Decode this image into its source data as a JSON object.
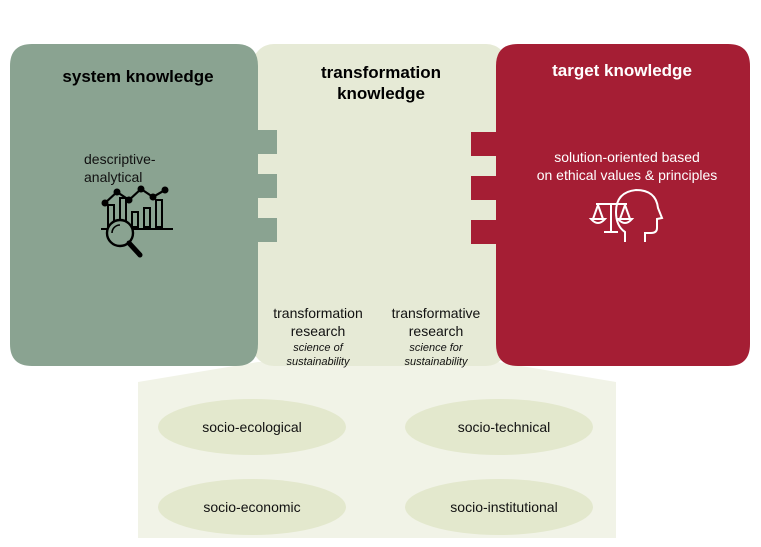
{
  "colors": {
    "system": "#8aa391",
    "transformation": "#e6ead6",
    "target": "#a51e34",
    "lower_panel": "#f1f3e7",
    "oval": "#e3e8cd"
  },
  "system": {
    "title": "system knowledge",
    "description": "descriptive-\nanalytical",
    "icon": "chart-magnifier-icon"
  },
  "transformation": {
    "title": "transformation\nknowledge",
    "research_left": {
      "title": "transformation\nresearch",
      "subtitle": "science of\nsustainability"
    },
    "research_right": {
      "title": "transformative\nresearch",
      "subtitle": "science for\nsustainability"
    }
  },
  "target": {
    "title": "target knowledge",
    "description": "solution-oriented based\non ethical values & principles",
    "icon": "scales-head-icon"
  },
  "domains": [
    "socio-ecological",
    "socio-technical",
    "socio-economic",
    "socio-institutional"
  ]
}
